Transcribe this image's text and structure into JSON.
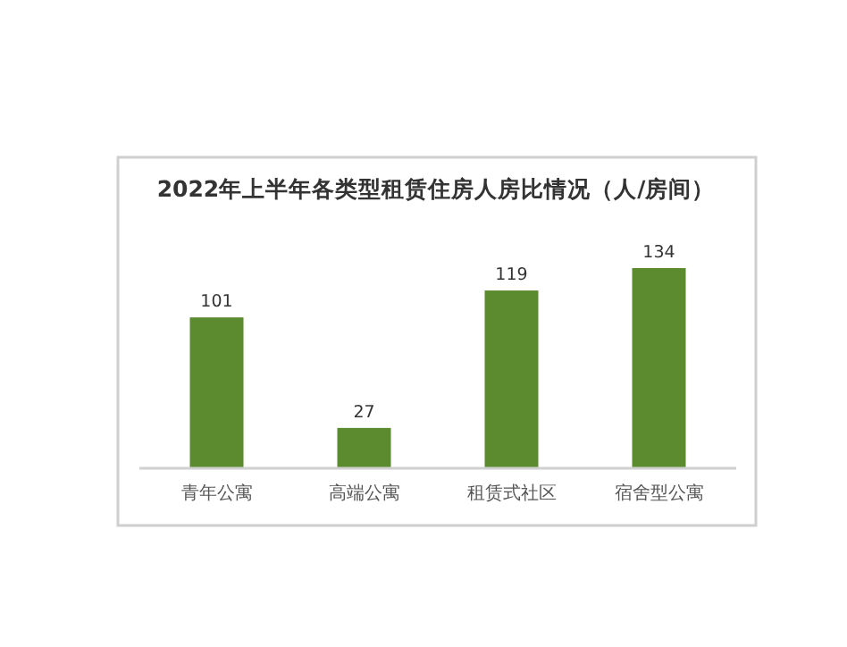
{
  "chart_data": {
    "type": "bar",
    "title": "2022年上半年各类型租赁住房人房比情况（人/房间）",
    "categories": [
      "青年公寓",
      "高端公寓",
      "租赁式社区",
      "宿舍型公寓"
    ],
    "values": [
      101,
      27,
      119,
      134
    ],
    "color": "#5b8a2f",
    "data_labels": true
  }
}
